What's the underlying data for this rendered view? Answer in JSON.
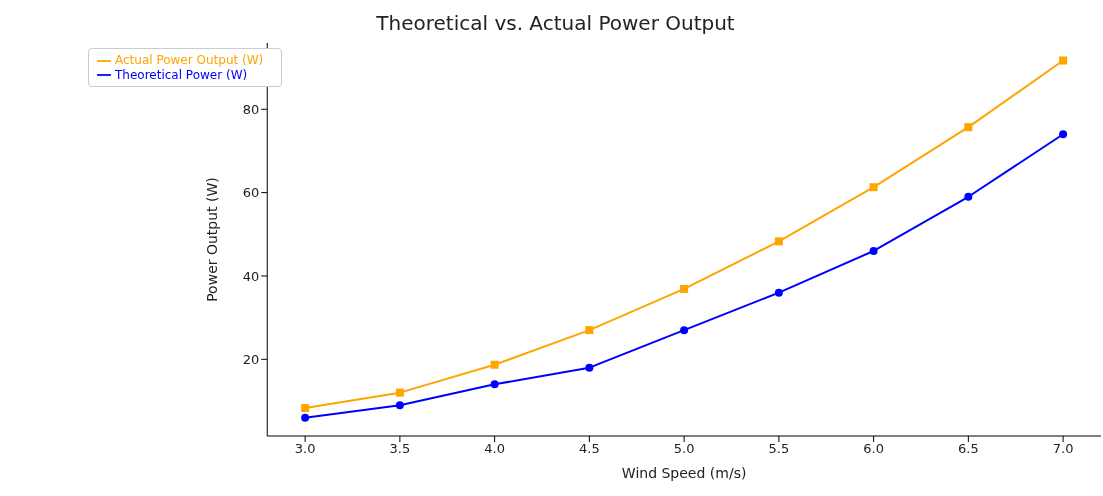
{
  "chart_data": {
    "type": "line",
    "title": "Theoretical vs. Actual Power Output",
    "xlabel": "Wind Speed (m/s)",
    "ylabel": "Power Output (W)",
    "x": [
      3.0,
      3.5,
      4.0,
      4.5,
      5.0,
      5.5,
      6.0,
      6.5,
      7.0
    ],
    "series": [
      {
        "name": "Theoretical Power (W)",
        "color": "#0000ff",
        "marker": "circle",
        "values": [
          6,
          9,
          14,
          18,
          27,
          36,
          46,
          59,
          74
        ]
      },
      {
        "name": "Actual Power Output (W)",
        "color": "#ffa500",
        "marker": "square",
        "values": [
          8.3,
          12,
          18.7,
          27,
          36.9,
          48.3,
          61.3,
          75.7,
          91.7
        ]
      }
    ],
    "xlim": [
      2.8,
      7.2
    ],
    "xticks": [
      {
        "value": 3,
        "label": "3.0"
      },
      {
        "value": 3.5,
        "label": "3.5"
      },
      {
        "value": 4,
        "label": "4.0"
      },
      {
        "value": 4.5,
        "label": "4.5"
      },
      {
        "value": 5,
        "label": "5.0"
      },
      {
        "value": 5.5,
        "label": "5.5"
      },
      {
        "value": 6,
        "label": "6.0"
      },
      {
        "value": 6.5,
        "label": "6.5"
      },
      {
        "value": 7,
        "label": "7.0"
      }
    ],
    "ylim": [
      1.6,
      95.9
    ],
    "yticks": [
      20,
      40,
      60,
      80
    ],
    "grid": false,
    "legend": "top left",
    "line_style": "solid"
  }
}
